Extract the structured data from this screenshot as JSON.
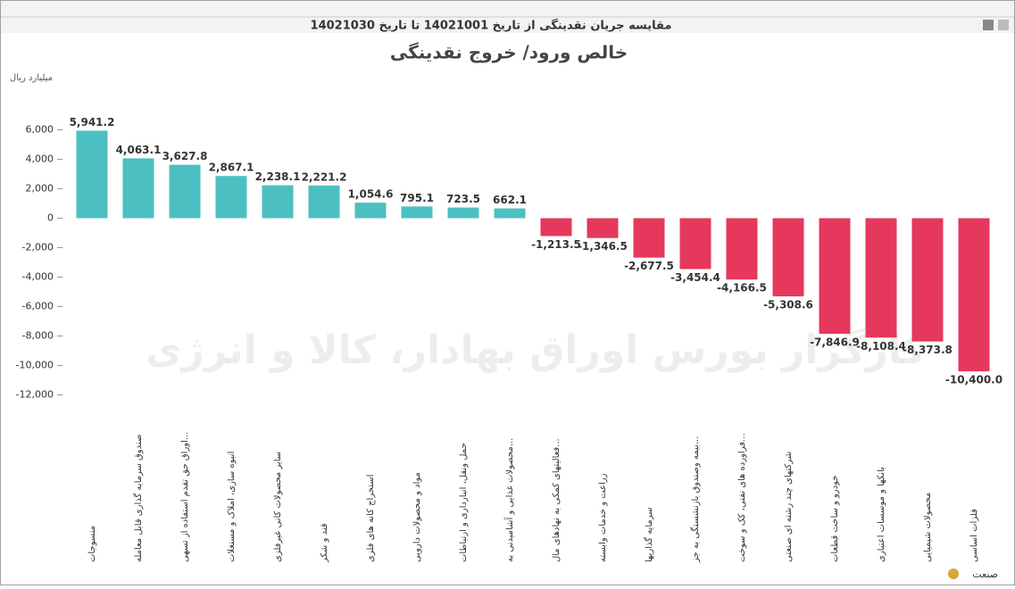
{
  "window_title": "مقایسه جریان نقدینگی از تاریخ 14021001 تا تاریخ 14021030",
  "chart_data": {
    "type": "bar",
    "title": "خالص ورود/ خروج نقدینگی",
    "y_label": "میلیارد ریال",
    "x_label": "صنعت",
    "watermark": "کارگزار بورس اوراق بهادار، کالا و انرژی",
    "categories": [
      "منسوجات",
      "صندوق سرمایه گذاری قابل معامله",
      "اوراق حق تقدم استفاده از تسهی...",
      "انبوه سازی، املاک و مستغلات",
      "سایر محصولات کانی غیرفلزی",
      "قند و شکر",
      "استخراج کانه های فلزی",
      "مواد و محصولات دارویی",
      "حمل ونقل، انبارداری و ارتباطات",
      "محصولات غذایی و آشامیدنی به...",
      "فعالیتهای کمکی به نهادهای مال...",
      "زراعت و خدمات وابسته",
      "سرمایه گذاریها",
      "بیمه وصندوق بازنشستگی به جز...",
      "فراورده های نفتی، کک و سوخت...",
      "شرکتهای چند رشته ای صنعتی",
      "خودرو و ساخت قطعات",
      "بانکها و موسسات اعتباری",
      "محصولات شیمیایی",
      "فلزات اساسی"
    ],
    "values": [
      5941.2,
      4063.1,
      3627.8,
      2867.1,
      2238.1,
      2221.2,
      1054.6,
      795.1,
      723.5,
      662.1,
      -1213.5,
      -1346.5,
      -2677.5,
      -3454.4,
      -4166.5,
      -5308.6,
      -7846.9,
      -8108.4,
      -8373.8,
      -10400.0
    ],
    "value_labels": [
      "5,941.2",
      "4,063.1",
      "3,627.8",
      "2,867.1",
      "2,238.1",
      "2,221.2",
      "1,054.6",
      "795.1",
      "723.5",
      "662.1",
      "-1,213.5",
      "-1,346.5",
      "-2,677.5",
      "-3,454.4",
      "-4,166.5",
      "-5,308.6",
      "-7,846.9",
      "-8,108.4",
      "-8,373.8",
      "-10,400.0"
    ],
    "positive_color": "#4cbfc2",
    "negative_color": "#e5385c",
    "ylim": [
      -13000,
      9000
    ],
    "yticks": [
      {
        "value": 6000,
        "label": "6,000"
      },
      {
        "value": 4000,
        "label": "4,000"
      },
      {
        "value": 2000,
        "label": "2,000"
      },
      0,
      {
        "value": -2000,
        "label": "-2,000"
      },
      {
        "value": -4000,
        "label": "-4,000"
      },
      {
        "value": -6000,
        "label": "-6,000"
      },
      {
        "value": -8000,
        "label": "-8,000"
      },
      {
        "value": -10000,
        "label": "-10,000"
      },
      {
        "value": -12000,
        "label": "-12,000"
      }
    ]
  }
}
